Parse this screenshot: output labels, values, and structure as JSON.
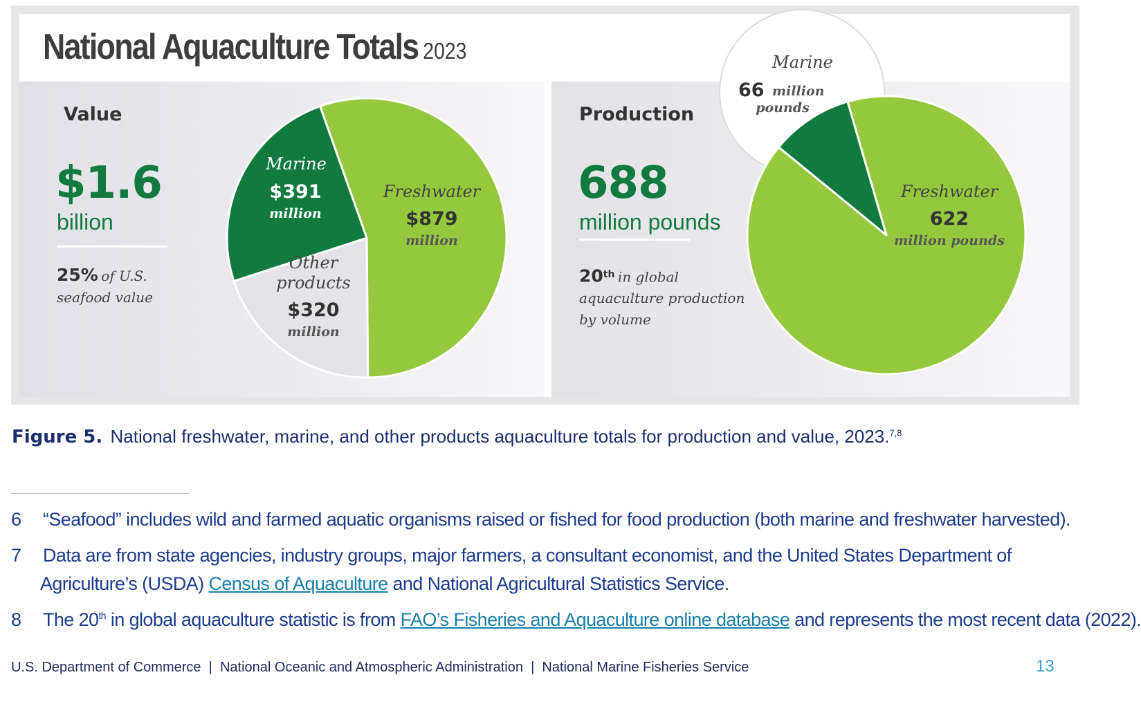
{
  "title": "National Aquaculture Totals",
  "title_year": "2023",
  "value_panel": {
    "heading": "Value",
    "big_number": "$1.6",
    "big_unit": "billion",
    "stat_strong": "25%",
    "stat_line1": "of U.S.",
    "stat_line2": "seafood value"
  },
  "production_panel": {
    "heading": "Production",
    "big_number": "688",
    "big_unit": "million pounds",
    "stat_strong": "20",
    "stat_sup": "th",
    "stat_line1": "in global",
    "stat_line2": "aquaculture production",
    "stat_line3": "by volume"
  },
  "chart_data": [
    {
      "type": "pie",
      "heading": "Value",
      "slices": [
        {
          "label": "Freshwater",
          "value": 879,
          "display_value": "$879",
          "unit": "million",
          "color": "#95c93d"
        },
        {
          "label": "Other products",
          "value": 320,
          "display_value": "$320",
          "unit": "million",
          "color": "#e4e4e8"
        },
        {
          "label": "Marine",
          "value": 391,
          "display_value": "$391",
          "unit": "million",
          "color": "#117a3f"
        }
      ]
    },
    {
      "type": "pie",
      "heading": "Production",
      "slices": [
        {
          "label": "Freshwater",
          "value": 622,
          "display_value": "622",
          "unit": "million pounds",
          "color": "#95c93d"
        },
        {
          "label": "Marine",
          "value": 66,
          "display_value": "66",
          "unit": "million pounds",
          "color": "#117a3f"
        }
      ]
    }
  ],
  "pie_labels": {
    "value_marine_label": "Marine",
    "value_marine_value": "$391",
    "value_marine_unit": "million",
    "value_fresh_label": "Freshwater",
    "value_fresh_value": "$879",
    "value_fresh_unit": "million",
    "value_other_label_1": "Other",
    "value_other_label_2": "products",
    "value_other_value": "$320",
    "value_other_unit": "million",
    "prod_marine_label": "Marine",
    "prod_marine_value": "66",
    "prod_marine_unit_1": "million",
    "prod_marine_unit_2": "pounds",
    "prod_fresh_label": "Freshwater",
    "prod_fresh_value": "622",
    "prod_fresh_unit": "million pounds"
  },
  "caption": {
    "label": "Figure 5.",
    "text": "National freshwater, marine, and other products aquaculture totals for production and value, 2023.",
    "refs": "7,8"
  },
  "footnotes": {
    "fn6_num": "6",
    "fn6_text": "“Seafood” includes wild and farmed aquatic organisms raised or fished for food production (both marine and freshwater harvested).",
    "fn7_num": "7",
    "fn7_line1": "Data are from state agencies, industry groups, major farmers, a consultant economist, and the United States Department of",
    "fn7_line2_pre": "Agriculture’s (USDA) ",
    "fn7_link": "Census of Aquaculture",
    "fn7_line2_post": " and National Agricultural Statistics Service.",
    "fn8_num": "8",
    "fn8_pre": "The 20",
    "fn8_sup": "th",
    "fn8_mid": " in global aquaculture statistic is from ",
    "fn8_link": "FAO’s Fisheries and Aquaculture online database",
    "fn8_post": " and represents the most recent data (2022)."
  },
  "footer": {
    "text": "U.S. Department of Commerce  |  National Oceanic and Atmospheric Administration  |  National Marine Fisheries Service",
    "page_number": "13"
  }
}
